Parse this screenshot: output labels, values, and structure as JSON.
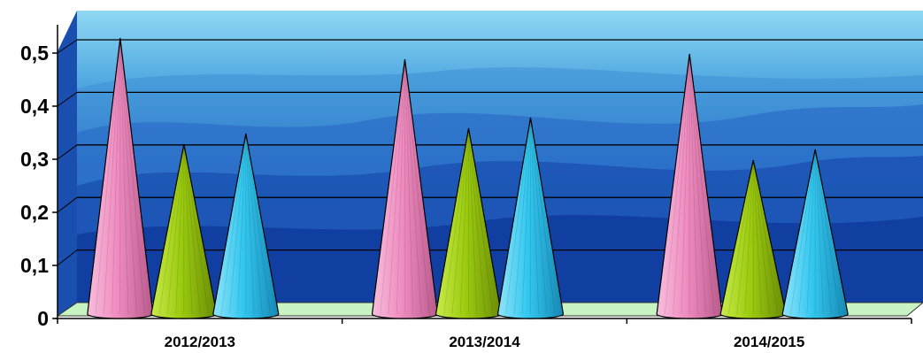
{
  "chart_data": {
    "type": "bar",
    "bar_shape": "cone",
    "categories": [
      "2012/2013",
      "2013/2014",
      "2014/2015"
    ],
    "series": [
      {
        "values": [
          0.52,
          0.48,
          0.49
        ],
        "color": "#f08cc0"
      },
      {
        "values": [
          0.32,
          0.35,
          0.29
        ],
        "color": "#9ccc10"
      },
      {
        "values": [
          0.34,
          0.37,
          0.31
        ],
        "color": "#33c8f0"
      }
    ],
    "y_ticks": [
      "0",
      "0,1",
      "0,2",
      "0,3",
      "0,4",
      "0,5"
    ],
    "ylim": [
      0,
      0.5
    ],
    "grid": true,
    "title": "",
    "xlabel": "",
    "ylabel": "",
    "background": "mountain-landscape",
    "colors": {
      "wall_top": "#8fd8f4",
      "wall_bottom": "#0c2f9c",
      "floor": "#c8f4c4"
    }
  }
}
